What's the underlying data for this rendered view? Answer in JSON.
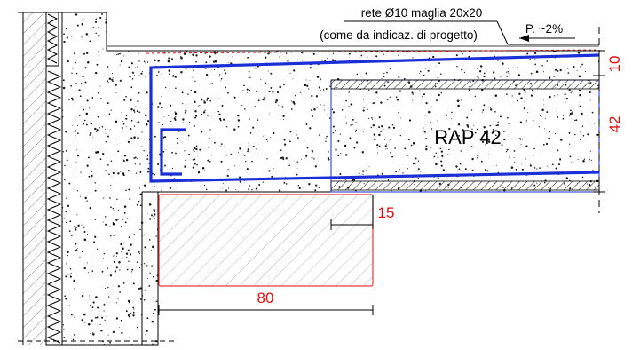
{
  "drawing": {
    "note_line1": "rete Ø10 maglia 20x20",
    "note_line2": "(come da indicaz. di progetto)",
    "slope": "P. ~2%",
    "slab_label": "RAP 42",
    "dim_top": "10",
    "dim_slab": "42",
    "dim_bearing": "15",
    "dim_width": "80"
  },
  "colors": {
    "rebar": "#1a2fd6",
    "dimension": "#e01010",
    "line": "#000000",
    "hatch": "#7a7a7a",
    "bearing_outline": "#e33b3b"
  }
}
